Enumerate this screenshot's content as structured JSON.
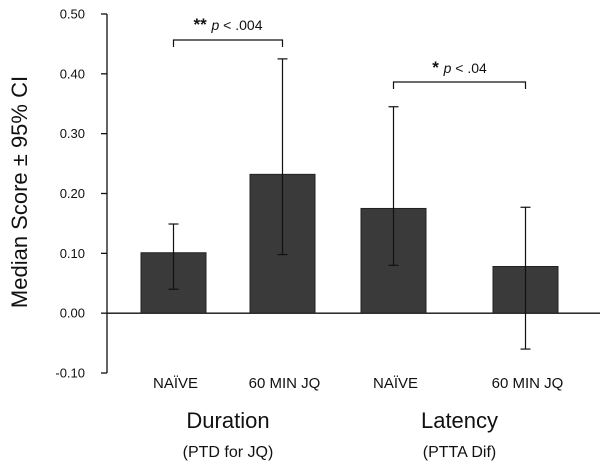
{
  "chart_data": {
    "type": "bar",
    "ylabel": "Median Score ± 95% CI",
    "ylim": [
      -0.1,
      0.5
    ],
    "yticks": [
      "0.50",
      "0.40",
      "0.30",
      "0.20",
      "0.10",
      "0.00",
      "-0.10"
    ],
    "ytick_values": [
      0.5,
      0.4,
      0.3,
      0.2,
      0.1,
      0.0,
      -0.1
    ],
    "categories": [
      "NAÏVE",
      "60 MIN JQ",
      "NAÏVE",
      "60 MIN JQ"
    ],
    "values": [
      0.101,
      0.232,
      0.175,
      0.078
    ],
    "ci_low": [
      0.04,
      0.098,
      0.08,
      -0.06
    ],
    "ci_high": [
      0.149,
      0.425,
      0.345,
      0.177
    ],
    "groups": [
      {
        "label": "Duration",
        "sublabel": "(PTD for JQ)",
        "bars": [
          0,
          1
        ]
      },
      {
        "label": "Latency",
        "sublabel": "(PTTA Dif)",
        "bars": [
          2,
          3
        ]
      }
    ],
    "significance": [
      {
        "stars": "**",
        "p_label": "p",
        "p_text": " < .004",
        "bars": [
          0,
          1
        ]
      },
      {
        "stars": "*",
        "p_label": "p",
        "p_text": " < .04",
        "bars": [
          2,
          3
        ]
      }
    ],
    "bar_color": "#3a3a3a",
    "grid": false,
    "legend": "none"
  }
}
